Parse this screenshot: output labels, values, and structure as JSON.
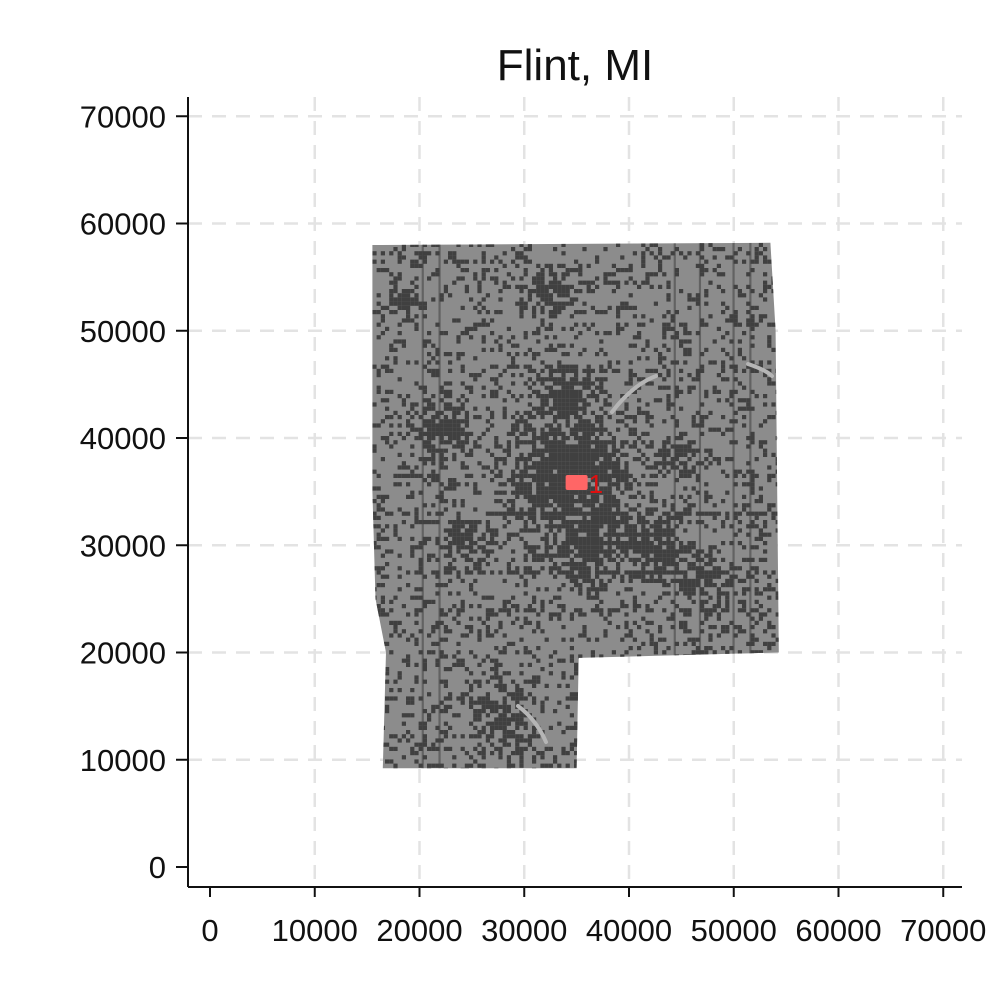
{
  "title": "Flint, MI",
  "chart_data": {
    "type": "map",
    "title": "Flint, MI",
    "xlabel": "",
    "ylabel": "",
    "xlim": [
      -2000,
      72000
    ],
    "ylim": [
      -2000,
      72000
    ],
    "x_ticks": [
      0,
      10000,
      20000,
      30000,
      40000,
      50000,
      60000,
      70000
    ],
    "y_ticks": [
      0,
      10000,
      20000,
      30000,
      40000,
      50000,
      60000,
      70000
    ],
    "grid": true,
    "region": {
      "name": "",
      "boundary": [
        [
          15500,
          58000
        ],
        [
          53500,
          58200
        ],
        [
          54000,
          50000
        ],
        [
          54300,
          20000
        ],
        [
          35200,
          19500
        ],
        [
          35000,
          9200
        ],
        [
          16500,
          9200
        ],
        [
          16800,
          20000
        ],
        [
          15800,
          25000
        ],
        [
          15500,
          35000
        ]
      ],
      "fill_color": "#8c8c8c",
      "developed_color": "#404040"
    },
    "urban_clusters": [
      {
        "x": 34500,
        "y": 37000,
        "radius": 7500,
        "density": 0.8
      },
      {
        "x": 36000,
        "y": 31000,
        "radius": 6000,
        "density": 0.72
      },
      {
        "x": 22000,
        "y": 41000,
        "radius": 3800,
        "density": 0.7
      },
      {
        "x": 42000,
        "y": 30000,
        "radius": 4500,
        "density": 0.65
      },
      {
        "x": 33500,
        "y": 44000,
        "radius": 3500,
        "density": 0.7
      },
      {
        "x": 32000,
        "y": 54000,
        "radius": 3000,
        "density": 0.65
      },
      {
        "x": 47000,
        "y": 27000,
        "radius": 3500,
        "density": 0.55
      },
      {
        "x": 28000,
        "y": 14000,
        "radius": 4000,
        "density": 0.55
      },
      {
        "x": 18500,
        "y": 53000,
        "radius": 2000,
        "density": 0.7
      },
      {
        "x": 24500,
        "y": 30000,
        "radius": 3000,
        "density": 0.5
      },
      {
        "x": 44500,
        "y": 38500,
        "radius": 2500,
        "density": 0.5
      }
    ],
    "points": [
      {
        "label": "1",
        "x": 35000,
        "y": 35800,
        "color": "#ff6666"
      }
    ]
  }
}
